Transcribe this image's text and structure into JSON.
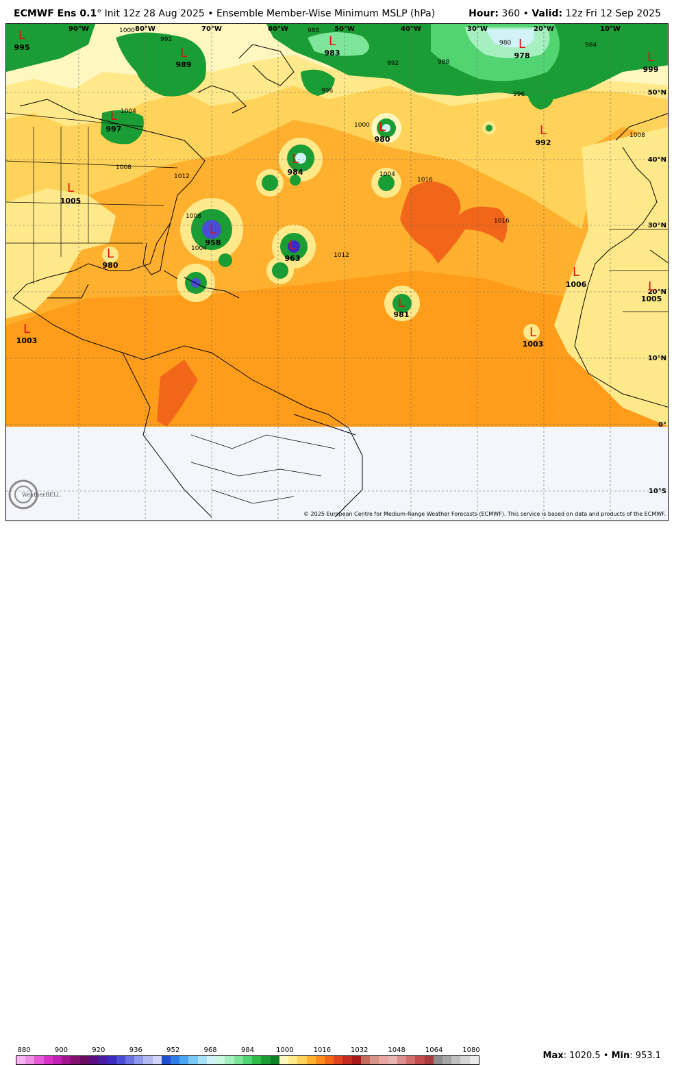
{
  "header": {
    "model": "ECMWF Ens 0.1",
    "degree": "°",
    "init": "Init 12z 28 Aug 2025",
    "bullet": "•",
    "product": "Ensemble Member-Wise Minimum MSLP (hPa)",
    "hour_label": "Hour:",
    "hour_value": "360",
    "valid_label": "Valid:",
    "valid_value": "12z Fri 12 Sep 2025"
  },
  "map": {
    "lon_labels": [
      "90°W",
      "80°W",
      "70°W",
      "60°W",
      "50°W",
      "40°W",
      "30°W",
      "20°W",
      "10°W"
    ],
    "lat_labels": [
      "50°N",
      "40°N",
      "30°N",
      "20°N",
      "10°N",
      "0°",
      "10°S"
    ],
    "lows": [
      {
        "letter": "L",
        "value": "995"
      },
      {
        "letter": "L",
        "value": "989"
      },
      {
        "letter": "L",
        "value": "983"
      },
      {
        "letter": "L",
        "value": "978"
      },
      {
        "letter": "L",
        "value": "999"
      },
      {
        "letter": "L",
        "value": "997"
      },
      {
        "letter": "L",
        "value": "980"
      },
      {
        "letter": "L",
        "value": "992"
      },
      {
        "letter": "L",
        "value": "984"
      },
      {
        "letter": "L",
        "value": "1005"
      },
      {
        "letter": "L",
        "value": "958"
      },
      {
        "letter": "L",
        "value": "963"
      },
      {
        "letter": "L",
        "value": "980"
      },
      {
        "letter": "L",
        "value": "981"
      },
      {
        "letter": "L",
        "value": "1006"
      },
      {
        "letter": "L",
        "value": "1005"
      },
      {
        "letter": "L",
        "value": "1003"
      },
      {
        "letter": "L",
        "value": "1003"
      }
    ],
    "contour_labels": [
      "1000",
      "992",
      "988",
      "984",
      "980",
      "996",
      "1004",
      "1008",
      "1012",
      "1016",
      "1000",
      "992",
      "988",
      "996",
      "1004",
      "1008",
      "1012",
      "1016",
      "1004",
      "1008"
    ],
    "copyright": "© 2025 European Centre for Medium-Range Weather Forecasts (ECMWF). This service is based on data and products of the ECMWF.",
    "watermark": "WeatherBELL"
  },
  "colorbar": {
    "labels": [
      "880",
      "900",
      "920",
      "936",
      "952",
      "968",
      "984",
      "1000",
      "1016",
      "1032",
      "1048",
      "1064",
      "1080"
    ],
    "colors": [
      "#f7b6f0",
      "#f08ee6",
      "#e55ad8",
      "#d930c9",
      "#c21fb4",
      "#a3148f",
      "#861070",
      "#6a0c62",
      "#5a0e80",
      "#4a1aa0",
      "#3d2ac0",
      "#4a4cd6",
      "#6a72e2",
      "#8e98ec",
      "#b3baf3",
      "#d2d6f8",
      "#1f4fd1",
      "#2f7be8",
      "#4aa6f2",
      "#79c8f5",
      "#a7e2f8",
      "#d1f3f7",
      "#c9f7e2",
      "#a6f0c0",
      "#7de69a",
      "#52d472",
      "#2dbb4a",
      "#1a9d34",
      "#0f8028",
      "#fff7c0",
      "#ffe98a",
      "#ffd35a",
      "#ffb02e",
      "#ff8c1a",
      "#f2661a",
      "#e0441e",
      "#c52a1e",
      "#a8181c",
      "#c36b5a",
      "#d9948a",
      "#e7a6a0",
      "#e8b5b2",
      "#dd8f8f",
      "#d06e6e",
      "#c24c4c",
      "#a83c3c",
      "#8c8c8c",
      "#a6a6a6",
      "#bfbfbf",
      "#d6d6d6",
      "#ebebeb"
    ],
    "max_label": "Max",
    "max_value": "1020.5",
    "min_label": "Min",
    "min_value": "953.1"
  }
}
